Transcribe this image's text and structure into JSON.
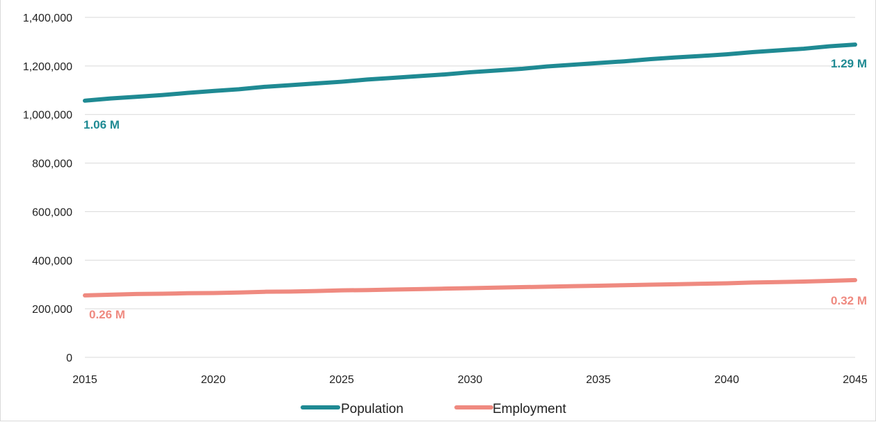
{
  "chart_data": {
    "type": "line",
    "title": "",
    "xlabel": "",
    "ylabel": "",
    "x": [
      2015,
      2016,
      2017,
      2018,
      2019,
      2020,
      2021,
      2022,
      2023,
      2024,
      2025,
      2026,
      2027,
      2028,
      2029,
      2030,
      2031,
      2032,
      2033,
      2034,
      2035,
      2036,
      2037,
      2038,
      2039,
      2040,
      2041,
      2042,
      2043,
      2044,
      2045
    ],
    "xlim": [
      2015,
      2045
    ],
    "ylim": [
      0,
      1400000
    ],
    "x_ticks": [
      2015,
      2020,
      2025,
      2030,
      2035,
      2040,
      2045
    ],
    "x_tick_labels": [
      "2015",
      "2020",
      "2025",
      "2030",
      "2035",
      "2040",
      "2045"
    ],
    "y_ticks": [
      0,
      200000,
      400000,
      600000,
      800000,
      1000000,
      1200000,
      1400000
    ],
    "y_tick_labels": [
      "0",
      "200,000",
      "400,000",
      "600,000",
      "800,000",
      "1,000,000",
      "1,200,000",
      "1,400,000"
    ],
    "grid": "horizontal",
    "legend_position": "bottom-center",
    "series": [
      {
        "name": "Population",
        "color": "#1f8a93",
        "values": [
          1057000,
          1066000,
          1073000,
          1080000,
          1089000,
          1097000,
          1104000,
          1114000,
          1121000,
          1128000,
          1135000,
          1144000,
          1151000,
          1158000,
          1165000,
          1174000,
          1181000,
          1188000,
          1198000,
          1205000,
          1212000,
          1219000,
          1228000,
          1235000,
          1241000,
          1248000,
          1257000,
          1264000,
          1271000,
          1281000,
          1288000
        ],
        "start_label": "1.06 M",
        "end_label": "1.29 M"
      },
      {
        "name": "Employment",
        "color": "#ef8a80",
        "values": [
          255000,
          258000,
          261000,
          262000,
          264000,
          265000,
          267000,
          270000,
          271000,
          273000,
          276000,
          277000,
          279000,
          281000,
          283000,
          285000,
          287000,
          289000,
          291000,
          293000,
          295000,
          297000,
          299000,
          301000,
          303000,
          305000,
          308000,
          310000,
          312000,
          315000,
          318000
        ],
        "start_label": "0.26 M",
        "end_label": "0.32 M"
      }
    ]
  }
}
